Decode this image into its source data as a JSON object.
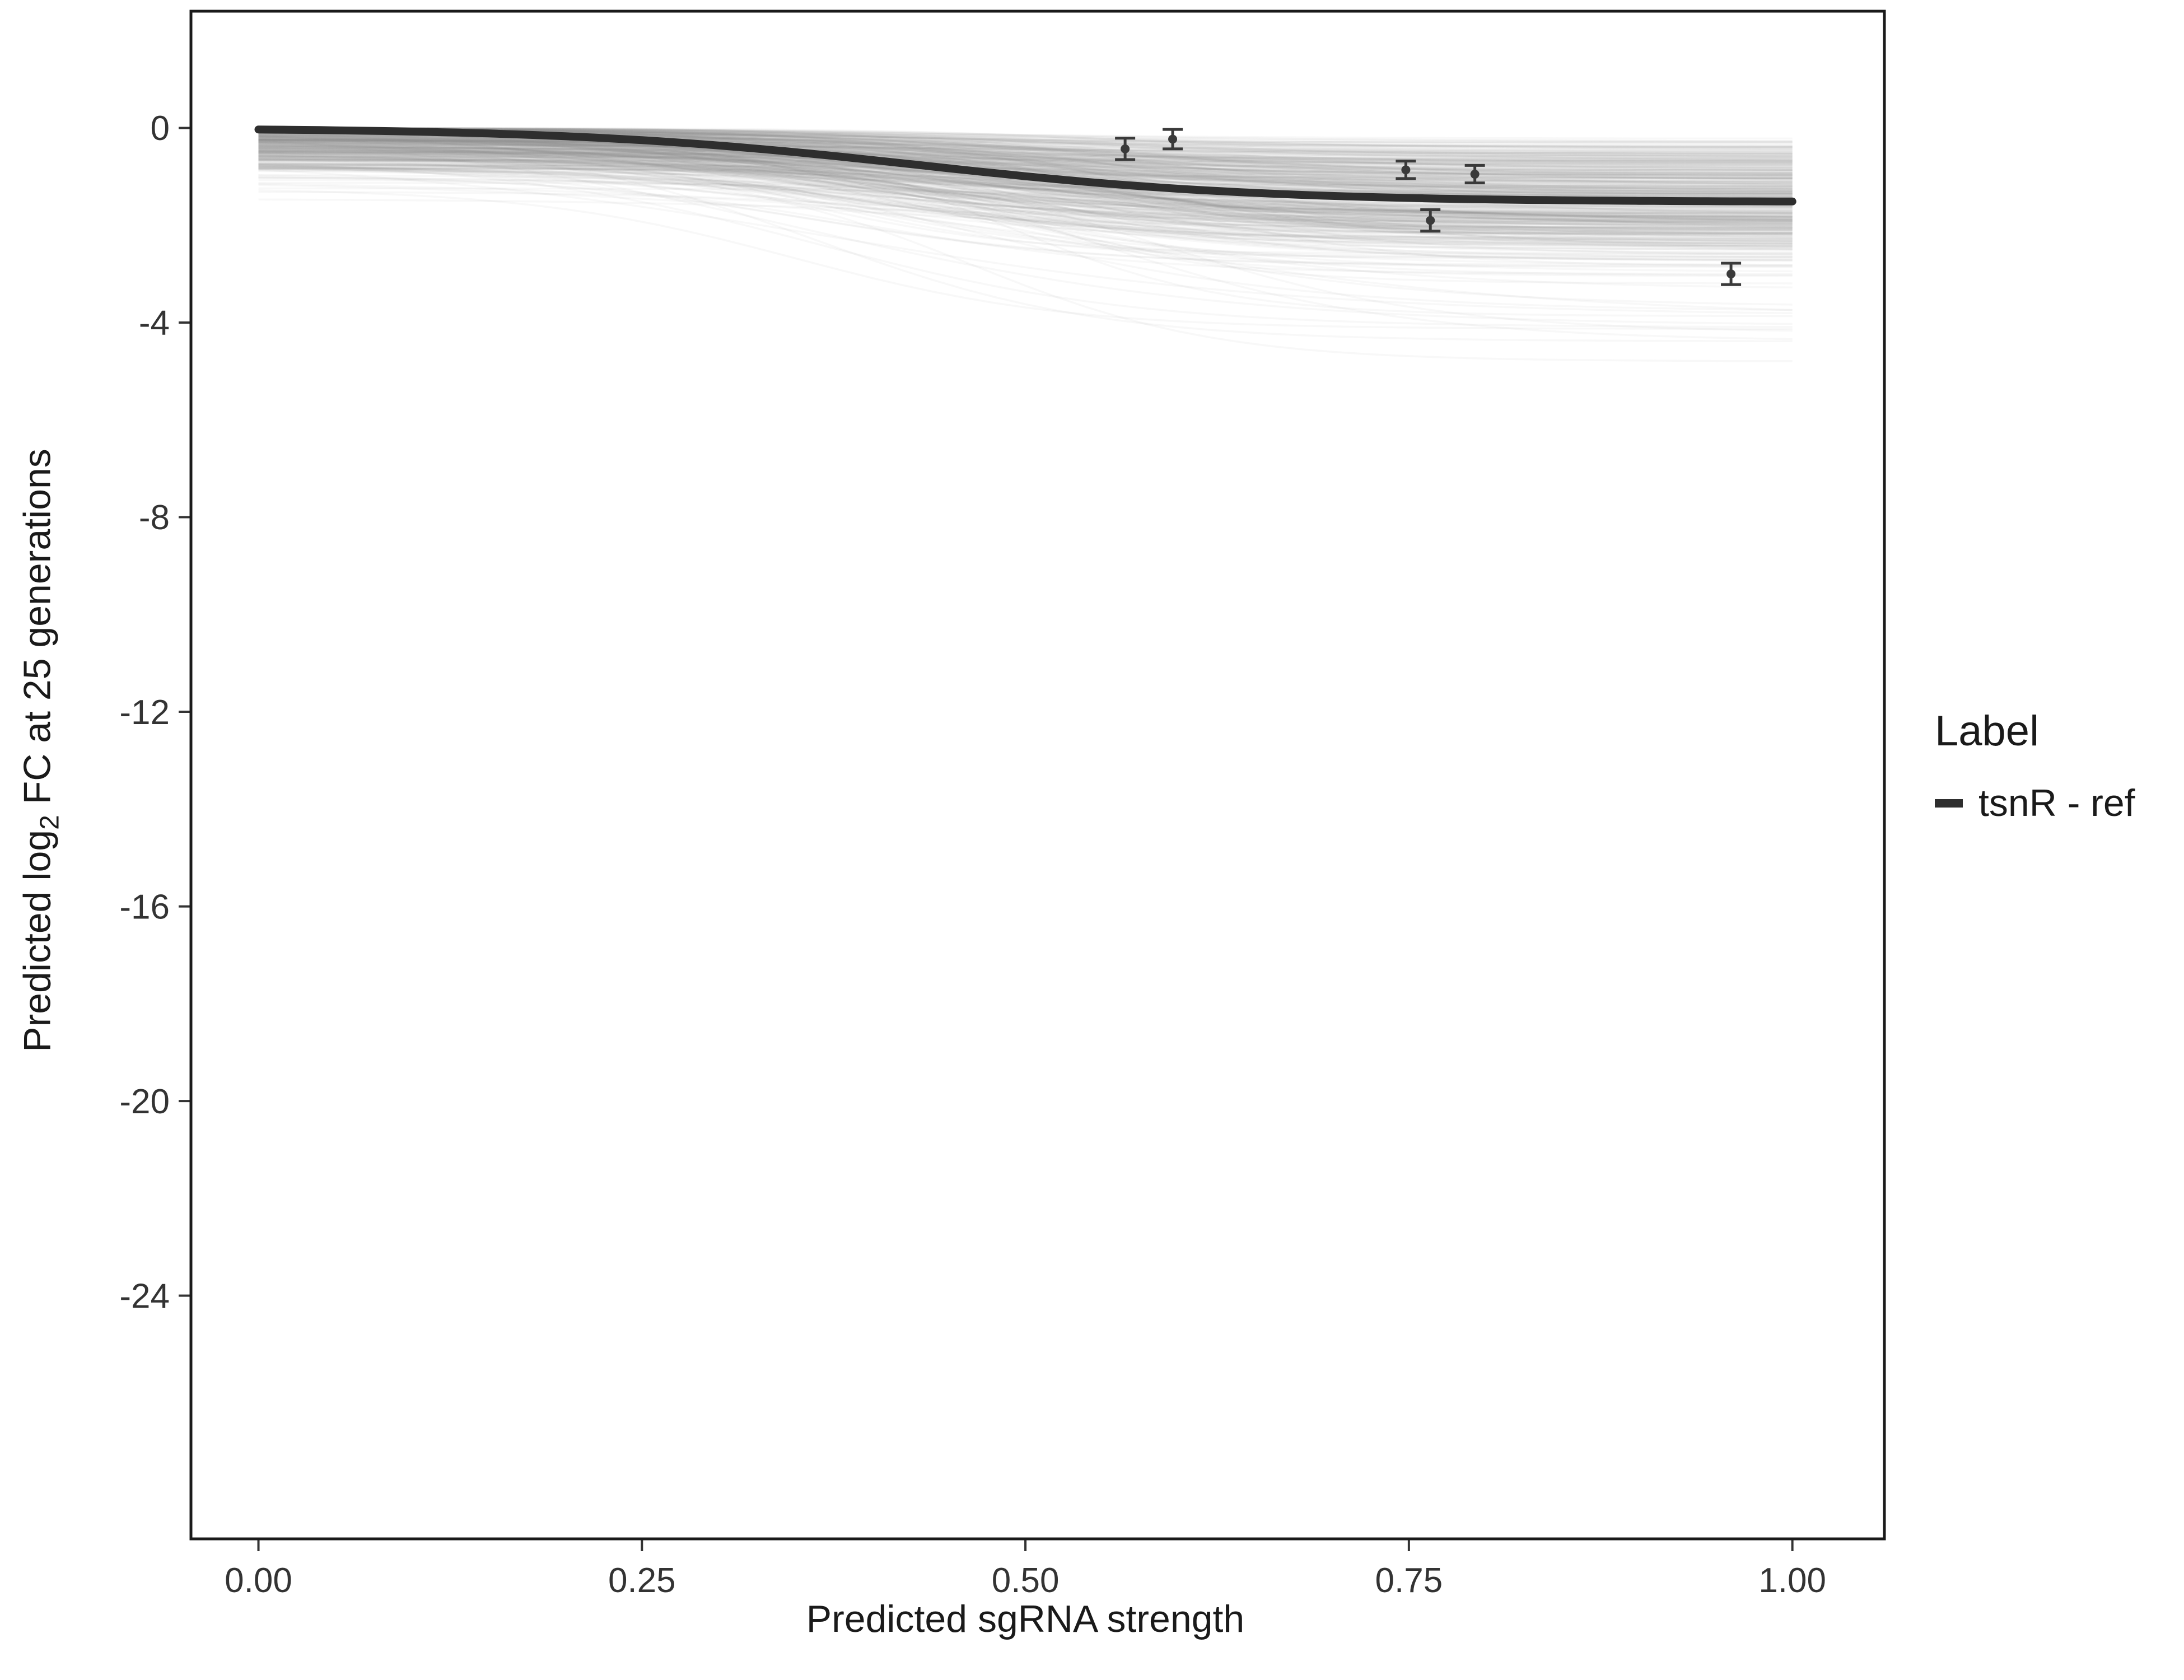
{
  "chart_data": {
    "type": "line",
    "title": "",
    "xlabel": "Predicted sgRNA strength",
    "ylabel_parts": {
      "prefix": "Predicted  log",
      "sub": "2",
      "suffix": " FC at 25 generations"
    },
    "x_domain": [
      -0.044,
      1.06
    ],
    "y_domain": [
      -29,
      2.4
    ],
    "x_ticks": [
      {
        "v": 0,
        "label": "0.00"
      },
      {
        "v": 0.25,
        "label": "0.25"
      },
      {
        "v": 0.5,
        "label": "0.50"
      },
      {
        "v": 0.75,
        "label": "0.75"
      },
      {
        "v": 1,
        "label": "1.00"
      }
    ],
    "y_ticks": [
      {
        "v": 0,
        "label": "0"
      },
      {
        "v": -4,
        "label": "-4"
      },
      {
        "v": -8,
        "label": "-8"
      },
      {
        "v": -12,
        "label": "-12"
      },
      {
        "v": -16,
        "label": "-16"
      },
      {
        "v": -20,
        "label": "-20"
      },
      {
        "v": -24,
        "label": "-24"
      }
    ],
    "fit_curve": {
      "name": "tsnR - ref",
      "color": "#2e2e2e",
      "width": 14,
      "baseline": 0,
      "asymptote": 1.52,
      "midpoint": 0.43,
      "slope": 9
    },
    "posterior_draws": {
      "count": 450,
      "seed": 7,
      "color": "#8a8a8a",
      "opacity": 0.06,
      "width": 3.5,
      "baseline_spread": 0.85,
      "baseline_outlier_prob": 0.05,
      "baseline_outlier_extra": 1.1,
      "asymptote_min": 0.15,
      "asymptote_spread": 2.1,
      "outlier_prob": 0.05,
      "outlier_asymptote_max": 4.6,
      "midpoint_min": 0.32,
      "midpoint_spread": 0.28,
      "slope_min": 6,
      "slope_spread": 8
    },
    "points": {
      "color": "#3a3a3a",
      "data": [
        {
          "x": 0.565,
          "y": -0.43,
          "err": 0.22
        },
        {
          "x": 0.596,
          "y": -0.23,
          "err": 0.2
        },
        {
          "x": 0.748,
          "y": -0.86,
          "err": 0.18
        },
        {
          "x": 0.793,
          "y": -0.95,
          "err": 0.18
        },
        {
          "x": 0.764,
          "y": -1.9,
          "err": 0.22
        },
        {
          "x": 0.96,
          "y": -3.0,
          "err": 0.22
        }
      ]
    },
    "legend": {
      "title": "Label",
      "entries": [
        {
          "label": "tsnR - ref",
          "color": "#2e2e2e"
        }
      ]
    },
    "panel": {
      "border_color": "#1a1a1a",
      "border_width": 5,
      "background": "#ffffff",
      "grid": false
    }
  }
}
